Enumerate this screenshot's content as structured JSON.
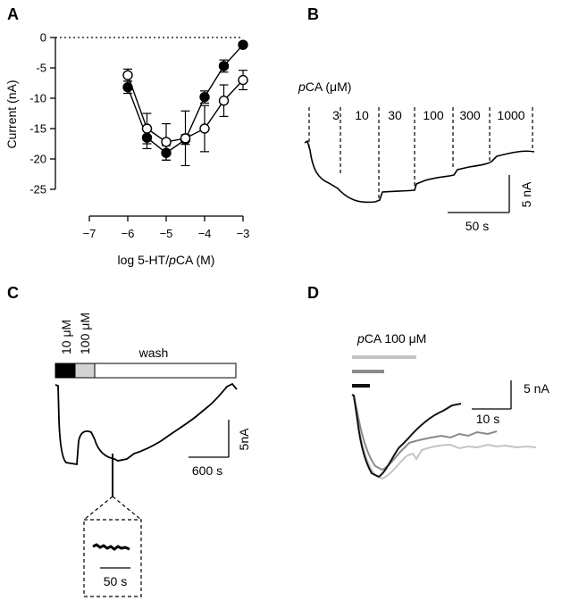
{
  "panels": {
    "a": {
      "letter": "A"
    },
    "b": {
      "letter": "B",
      "header": "pCA (μM)",
      "header_italic": "p",
      "header_rest": "CA (μM)",
      "concentrations": [
        "3",
        "10",
        "30",
        "100",
        "300",
        "1000"
      ],
      "scalebar_y": "5 nA",
      "scalebar_x": "50 s"
    },
    "c": {
      "letter": "C",
      "label_10": "10 μM",
      "label_100": "100 μM",
      "wash": "wash",
      "scalebar_y": "5nA",
      "scalebar_x": "600 s",
      "inset_scalebar_x": "50 s"
    },
    "d": {
      "letter": "D",
      "header_italic": "p",
      "header_rest": "CA 100 μM",
      "scalebar_y": "5 nA",
      "scalebar_x": "10 s",
      "trace_colors": {
        "black": "#111111",
        "dark_gray": "#8a8a8a",
        "light_gray": "#c4c4c4"
      }
    }
  },
  "chart_data": [
    {
      "type": "scatter",
      "panel": "A",
      "ylabel": "Current (nA)",
      "xlabel": "log 5-HT/pCA (M)",
      "xlabel_pre": "log 5-HT/",
      "xlabel_italic": "p",
      "xlabel_post": "CA (M)",
      "xlim": [
        -7,
        -3
      ],
      "ylim": [
        -25,
        0
      ],
      "xticks": [
        -7,
        -6,
        -5,
        -4,
        -3
      ],
      "xtick_labels": [
        "−7",
        "−6",
        "−5",
        "−4",
        "−3"
      ],
      "yticks": [
        0,
        -5,
        -10,
        -15,
        -20,
        -25
      ],
      "ytick_labels": [
        "0",
        "-5",
        "-10",
        "-15",
        "-20",
        "-25"
      ],
      "zero_line": "dotted",
      "series": [
        {
          "marker": "filled",
          "x": [
            -6,
            -5.5,
            -5,
            -4.5,
            -4,
            -3.5,
            -3
          ],
          "y": [
            -8.2,
            -16.5,
            -19.0,
            -16.8,
            -9.8,
            -4.7,
            -1.2
          ],
          "err": [
            1.0,
            1.8,
            1.2,
            0.8,
            1.0,
            1.0,
            0.4
          ]
        },
        {
          "marker": "open",
          "x": [
            -6,
            -5.5,
            -5,
            -4.5,
            -4,
            -3.5,
            -3
          ],
          "y": [
            -6.2,
            -15.0,
            -17.2,
            -16.6,
            -15.0,
            -10.4,
            -7.0
          ],
          "err": [
            1.0,
            2.5,
            3.0,
            4.5,
            3.8,
            2.6,
            1.6
          ]
        }
      ]
    },
    {
      "type": "line",
      "panel": "B",
      "description_points_time_s": [
        0,
        5,
        10,
        20,
        40,
        60,
        70,
        75,
        90,
        105,
        110,
        125,
        140,
        150,
        160,
        175,
        180,
        200,
        215,
        225
      ],
      "current_nA": [
        0,
        -4.0,
        -6.0,
        -7.2,
        -8.0,
        -8.3,
        -8.2,
        -7.3,
        -7.1,
        -6.9,
        -5.6,
        -5.2,
        -5.0,
        -4.2,
        -4.0,
        -3.6,
        -2.8,
        -2.3,
        -1.9,
        -1.9
      ]
    },
    {
      "type": "line",
      "panel": "C",
      "time_s": [
        0,
        30,
        60,
        150,
        200,
        260,
        300,
        420,
        520,
        600,
        700,
        800,
        900,
        1000,
        1100,
        1200,
        1300,
        1400
      ],
      "current_nA": [
        0,
        -2,
        -7.5,
        -8.0,
        -4.0,
        -3.5,
        -4.0,
        -7.0,
        -8.0,
        -7.6,
        -6.8,
        -6.0,
        -5.0,
        -4.0,
        -3.0,
        -2.0,
        -0.6,
        0.4
      ]
    },
    {
      "type": "line",
      "panel": "D",
      "series": [
        {
          "name": "black",
          "time_s": [
            0,
            2,
            4,
            6,
            8,
            12,
            16,
            20,
            25
          ],
          "current_nA": [
            0,
            -9,
            -10.5,
            -9.8,
            -8.5,
            -5,
            -2.5,
            -1,
            0
          ]
        },
        {
          "name": "dark_gray",
          "time_s": [
            0,
            2,
            4,
            6,
            8,
            12,
            16,
            20
          ],
          "current_nA": [
            0,
            -7,
            -9,
            -10.5,
            -9.5,
            -7,
            -5.5,
            -5
          ]
        },
        {
          "name": "light_gray",
          "time_s": [
            0,
            2,
            4,
            8,
            12,
            16,
            20,
            25,
            30
          ],
          "current_nA": [
            0,
            -5,
            -8,
            -9.5,
            -8,
            -7.5,
            -7.2,
            -7,
            -6.8
          ]
        }
      ]
    }
  ]
}
